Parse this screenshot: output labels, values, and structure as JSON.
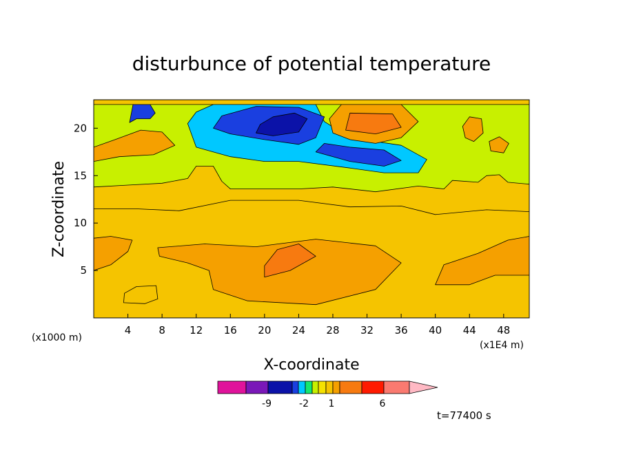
{
  "chart_data": {
    "type": "heatmap",
    "title": "disturbunce of potential temperature",
    "xlabel": "X-coordinate",
    "ylabel": "Z-coordinate",
    "x_unit_label": "(x1E4 m)",
    "y_unit_label": "(x1000 m)",
    "xlim": [
      0,
      51
    ],
    "ylim": [
      0,
      23
    ],
    "x_ticks": [
      4,
      8,
      12,
      16,
      20,
      24,
      28,
      32,
      36,
      40,
      44,
      48
    ],
    "y_ticks": [
      5,
      10,
      15,
      20
    ],
    "colorbar": {
      "colors": [
        "#e0139b",
        "#7a18b8",
        "#0b12a8",
        "#1a3fe0",
        "#00c8ff",
        "#15e86f",
        "#c8f000",
        "#f5e100",
        "#f5c400",
        "#f5a000",
        "#f77a10",
        "#ff1a00",
        "#fa7a70",
        "#ffb9c4"
      ],
      "tick_labels": [
        "-9",
        "-2",
        "1",
        "6"
      ]
    },
    "time_label": "t=77400 s",
    "regions": [
      {
        "name": "lower-orange-mass",
        "level": 1.5,
        "pts": [
          [
            14,
            3
          ],
          [
            18,
            1.8
          ],
          [
            26,
            1.4
          ],
          [
            33,
            3
          ],
          [
            36,
            5.8
          ],
          [
            33,
            7.6
          ],
          [
            26,
            8.3
          ],
          [
            19,
            7.5
          ],
          [
            13,
            7.8
          ],
          [
            7.5,
            7.4
          ],
          [
            7.7,
            6.5
          ],
          [
            11,
            5.8
          ],
          [
            13.5,
            5
          ]
        ]
      },
      {
        "name": "lower-left-orange",
        "level": 1.5,
        "pts": [
          [
            0,
            5
          ],
          [
            2,
            5.6
          ],
          [
            4,
            7
          ],
          [
            4.5,
            8.2
          ],
          [
            2,
            8.6
          ],
          [
            0,
            8.4
          ]
        ]
      },
      {
        "name": "lower-right-orange",
        "level": 1.5,
        "pts": [
          [
            40,
            3.5
          ],
          [
            44,
            3.5
          ],
          [
            47,
            4.5
          ],
          [
            51,
            4.5
          ],
          [
            51,
            8.6
          ],
          [
            48.5,
            8.2
          ],
          [
            45,
            6.8
          ],
          [
            41,
            5.6
          ]
        ]
      },
      {
        "name": "lower-dark-orange",
        "level": 2.5,
        "pts": [
          [
            20,
            4.3
          ],
          [
            23,
            5
          ],
          [
            26,
            6.5
          ],
          [
            24,
            7.8
          ],
          [
            21.5,
            7.2
          ],
          [
            20,
            5.5
          ]
        ]
      },
      {
        "name": "upper-yellow-band",
        "level": 0.7,
        "pts": [
          [
            0,
            11.5
          ],
          [
            5,
            11.5
          ],
          [
            10,
            11.3
          ],
          [
            16,
            12.4
          ],
          [
            24,
            12.4
          ],
          [
            30,
            11.7
          ],
          [
            36,
            11.8
          ],
          [
            40,
            10.9
          ],
          [
            46,
            11.4
          ],
          [
            51,
            11.2
          ],
          [
            51,
            22.5
          ],
          [
            0,
            22.5
          ]
        ]
      },
      {
        "name": "upper-green",
        "level": -0.5,
        "pts": [
          [
            0,
            13.8
          ],
          [
            4,
            14
          ],
          [
            8,
            14.2
          ],
          [
            11,
            14.7
          ],
          [
            12,
            16
          ],
          [
            14,
            16
          ],
          [
            15,
            14.4
          ],
          [
            16,
            13.6
          ],
          [
            24,
            13.6
          ],
          [
            28,
            13.8
          ],
          [
            33,
            13.3
          ],
          [
            38,
            13.9
          ],
          [
            41,
            13.6
          ],
          [
            42,
            14.5
          ],
          [
            45,
            14.3
          ],
          [
            46,
            15
          ],
          [
            47.5,
            15.1
          ],
          [
            48.5,
            14.3
          ],
          [
            51,
            14.1
          ],
          [
            51,
            22.5
          ],
          [
            0,
            22.5
          ]
        ]
      },
      {
        "name": "upper-cyan",
        "level": -1.5,
        "pts": [
          [
            11,
            20.5
          ],
          [
            12,
            18
          ],
          [
            16,
            17
          ],
          [
            20,
            16.5
          ],
          [
            24,
            16.5
          ],
          [
            30,
            15.8
          ],
          [
            34,
            15.3
          ],
          [
            38,
            15.3
          ],
          [
            39,
            16.7
          ],
          [
            36,
            18.2
          ],
          [
            30,
            19
          ],
          [
            27,
            20.7
          ],
          [
            26,
            22.5
          ],
          [
            14,
            22.5
          ],
          [
            12,
            21.7
          ]
        ]
      },
      {
        "name": "upper-blue",
        "level": -2.5,
        "pts": [
          [
            14,
            20
          ],
          [
            16,
            19.4
          ],
          [
            20,
            18.8
          ],
          [
            24,
            18.3
          ],
          [
            26,
            19
          ],
          [
            27,
            21.2
          ],
          [
            24,
            22.2
          ],
          [
            19,
            22.3
          ],
          [
            15,
            21.3
          ]
        ]
      },
      {
        "name": "upper-blue-low",
        "level": -2.5,
        "pts": [
          [
            26,
            17.5
          ],
          [
            30,
            16.5
          ],
          [
            34,
            16
          ],
          [
            36,
            16.6
          ],
          [
            34,
            17.7
          ],
          [
            30,
            18
          ],
          [
            27,
            18.4
          ]
        ]
      },
      {
        "name": "upper-purple",
        "level": -5.5,
        "pts": [
          [
            19,
            19.5
          ],
          [
            21,
            19.2
          ],
          [
            24,
            19.6
          ],
          [
            25,
            21
          ],
          [
            23.5,
            21.6
          ],
          [
            21,
            21.2
          ],
          [
            19.5,
            20.4
          ]
        ]
      },
      {
        "name": "upper-left-blue",
        "level": -2.5,
        "pts": [
          [
            4.2,
            20.6
          ],
          [
            5,
            21
          ],
          [
            6.6,
            21
          ],
          [
            7.2,
            21.6
          ],
          [
            6.6,
            22.5
          ],
          [
            4.6,
            22.5
          ]
        ]
      },
      {
        "name": "upper-orange-right",
        "level": 1.5,
        "pts": [
          [
            28,
            19.5
          ],
          [
            30,
            18.8
          ],
          [
            33,
            18.4
          ],
          [
            36,
            19
          ],
          [
            38,
            20.7
          ],
          [
            36,
            22.5
          ],
          [
            29,
            22.5
          ],
          [
            27.6,
            21
          ]
        ]
      },
      {
        "name": "upper-dark-orange-right",
        "level": 2.5,
        "pts": [
          [
            29.5,
            19.8
          ],
          [
            33,
            19.4
          ],
          [
            36,
            20.1
          ],
          [
            35,
            21.5
          ],
          [
            30,
            21.6
          ]
        ]
      },
      {
        "name": "upper-left-orange",
        "level": 1.5,
        "pts": [
          [
            0,
            16.5
          ],
          [
            3,
            17
          ],
          [
            7,
            17.2
          ],
          [
            9.5,
            18.2
          ],
          [
            8,
            19.6
          ],
          [
            5.5,
            19.8
          ],
          [
            2.5,
            18.8
          ],
          [
            0,
            18
          ]
        ]
      },
      {
        "name": "right-orange-blob",
        "level": 1.5,
        "pts": [
          [
            43.5,
            19
          ],
          [
            44.5,
            18.6
          ],
          [
            45.6,
            19.5
          ],
          [
            45.4,
            21
          ],
          [
            44,
            21.2
          ],
          [
            43.2,
            20.2
          ]
        ]
      },
      {
        "name": "right-small-orange",
        "level": 1.5,
        "pts": [
          [
            46.5,
            17.6
          ],
          [
            48,
            17.4
          ],
          [
            48.6,
            18.4
          ],
          [
            47.5,
            19.1
          ],
          [
            46.3,
            18.6
          ]
        ]
      },
      {
        "name": "bottom-left-yellow",
        "level": 0.7,
        "pts": [
          [
            3.5,
            1.6
          ],
          [
            6,
            1.5
          ],
          [
            7.5,
            2
          ],
          [
            7.3,
            3.4
          ],
          [
            5,
            3.3
          ],
          [
            3.6,
            2.6
          ]
        ]
      }
    ]
  }
}
